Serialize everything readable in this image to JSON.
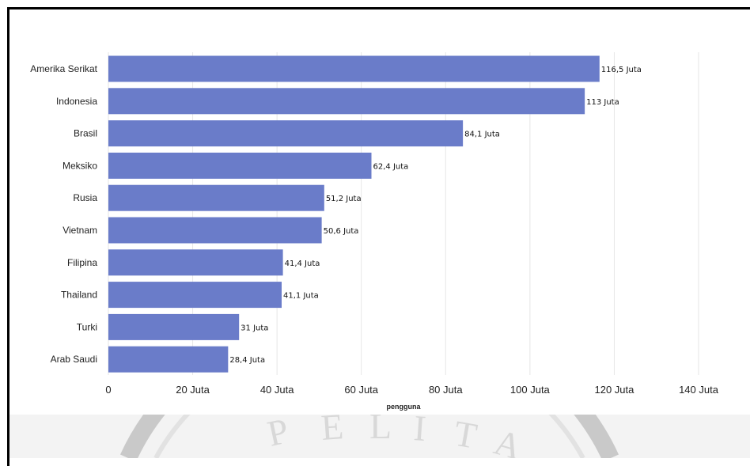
{
  "chart_data": {
    "type": "bar",
    "orientation": "horizontal",
    "categories": [
      "Amerika Serikat",
      "Indonesia",
      "Brasil",
      "Meksiko",
      "Rusia",
      "Vietnam",
      "Filipina",
      "Thailand",
      "Turki",
      "Arab Saudi"
    ],
    "values": [
      116.5,
      113,
      84.1,
      62.4,
      51.2,
      50.6,
      41.4,
      41.1,
      31,
      28.4
    ],
    "value_labels": [
      "116,5 Juta",
      "113 Juta",
      "84,1 Juta",
      "62,4 Juta",
      "51,2 Juta",
      "50,6 Juta",
      "41,4 Juta",
      "41,1 Juta",
      "31 Juta",
      "28,4 Juta"
    ],
    "xlabel": "pengguna",
    "ylabel": "",
    "xlim": [
      0,
      140
    ],
    "x_ticks": [
      0,
      20,
      40,
      60,
      80,
      100,
      120,
      140
    ],
    "x_tick_labels": [
      "0",
      "20 Juta",
      "40 Juta",
      "60 Juta",
      "80 Juta",
      "100 Juta",
      "120 Juta",
      "140 Juta"
    ],
    "grid": "vertical",
    "bar_color": "#6a7cc9"
  }
}
